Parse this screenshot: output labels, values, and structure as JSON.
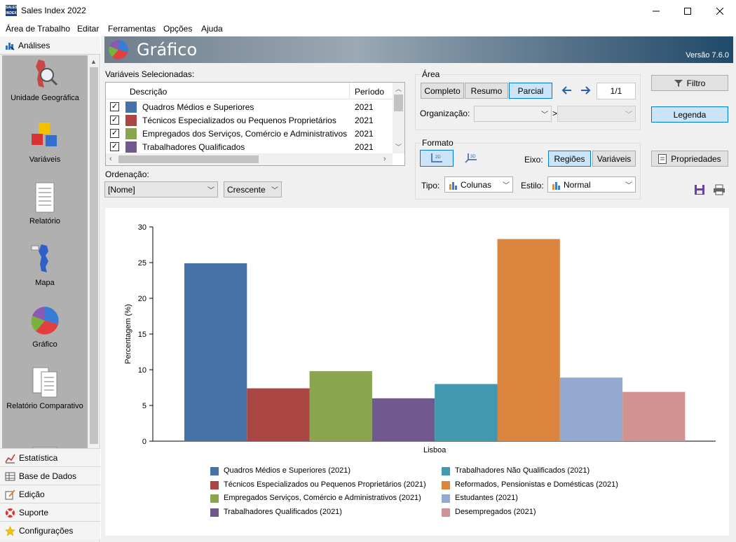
{
  "window": {
    "title": "Sales Index 2022",
    "icon_text": "SALES INDEX"
  },
  "menu": [
    "Área de Trabalho",
    "Editar",
    "Ferramentas",
    "Opções",
    "Ajuda"
  ],
  "sidebar": {
    "header": "Análises",
    "items": [
      {
        "label": "Unidade Geográfica",
        "icon": "map-magnifier-icon"
      },
      {
        "label": "Variáveis",
        "icon": "cubes-icon"
      },
      {
        "label": "Relatório",
        "icon": "report-document-icon"
      },
      {
        "label": "Mapa",
        "icon": "map-icon"
      },
      {
        "label": "Gráfico",
        "icon": "pie-chart-icon"
      },
      {
        "label": "Relatório Comparativo",
        "icon": "comparative-report-icon"
      }
    ],
    "bottom": [
      {
        "label": "Estatística",
        "icon": "statistics-icon"
      },
      {
        "label": "Base de Dados",
        "icon": "database-icon"
      },
      {
        "label": "Edição",
        "icon": "edit-icon"
      },
      {
        "label": "Suporte",
        "icon": "lifebuoy-icon"
      },
      {
        "label": "Configurações",
        "icon": "star-icon"
      }
    ]
  },
  "banner": {
    "title": "Gráfico",
    "version": "Versão 7.6.0"
  },
  "variables": {
    "label": "Variáveis Selecionadas:",
    "col_desc": "Descrição",
    "col_period": "Período",
    "rows": [
      {
        "desc": "Quadros Médios e Superiores",
        "period": "2021",
        "color": "#4572a7",
        "checked": true
      },
      {
        "desc": "Técnicos Especializados ou Pequenos Proprietários",
        "period": "2021",
        "color": "#aa4643",
        "checked": true
      },
      {
        "desc": "Empregados dos Serviços, Comércio e Administrativos",
        "period": "2021",
        "color": "#89a54e",
        "checked": true
      },
      {
        "desc": "Trabalhadores Qualificados",
        "period": "2021",
        "color": "#71588f",
        "checked": true
      }
    ]
  },
  "sorting": {
    "label": "Ordenação:",
    "field": "[Nome]",
    "direction": "Crescente"
  },
  "area": {
    "label": "Área",
    "buttons": [
      "Completo",
      "Resumo",
      "Parcial"
    ],
    "active": "Parcial",
    "page": "1/1",
    "org_label": "Organização:",
    "org_separator": ">"
  },
  "formato": {
    "label": "Formato",
    "eixo_label": "Eixo:",
    "eixo_buttons": [
      "Regiões",
      "Variáveis"
    ],
    "eixo_active": "Regiões",
    "tipo_label": "Tipo:",
    "tipo": "Colunas",
    "estilo_label": "Estilo:",
    "estilo": "Normal",
    "btn_2d": "2D",
    "btn_3d": "3D"
  },
  "actions": {
    "filtro": "Filtro",
    "legenda": "Legenda",
    "propriedades": "Propriedades"
  },
  "colors": {
    "accent_active": "#cce4f7",
    "accent_border": "#0078d7"
  },
  "chart_data": {
    "type": "bar",
    "categories": [
      "Lisboa"
    ],
    "ylabel": "Percentagem (%)",
    "xlabel": "",
    "ylim": [
      0,
      30
    ],
    "yticks": [
      0,
      5,
      10,
      15,
      20,
      25,
      30
    ],
    "series": [
      {
        "name": "Quadros Médios e Superiores (2021)",
        "color": "#4572a7",
        "values": [
          24.9
        ]
      },
      {
        "name": "Técnicos Especializados ou Pequenos Proprietários (2021)",
        "color": "#aa4643",
        "values": [
          7.4
        ]
      },
      {
        "name": "Empregados Serviços, Comércio e Administrativos (2021)",
        "color": "#89a54e",
        "values": [
          9.8
        ]
      },
      {
        "name": "Trabalhadores Qualificados (2021)",
        "color": "#71588f",
        "values": [
          6.0
        ]
      },
      {
        "name": "Trabalhadores Não Qualificados (2021)",
        "color": "#4198af",
        "values": [
          8.0
        ]
      },
      {
        "name": "Reformados, Pensionistas e Domésticas (2021)",
        "color": "#db843d",
        "values": [
          28.3
        ]
      },
      {
        "name": "Estudantes (2021)",
        "color": "#93a9cf",
        "values": [
          8.9
        ]
      },
      {
        "name": "Desempregados (2021)",
        "color": "#d09392",
        "values": [
          6.9
        ]
      }
    ]
  }
}
